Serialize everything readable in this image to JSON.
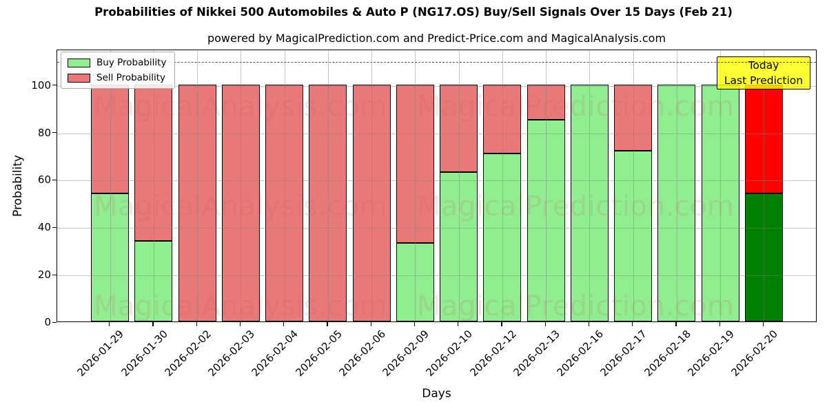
{
  "title": "Probabilities of Nikkei 500 Automobiles & Auto P (NG17.OS) Buy/Sell Signals Over 15 Days (Feb 21)",
  "subtitle": "powered by MagicalPrediction.com and Predict-Price.com and MagicalAnalysis.com",
  "axes": {
    "x_label": "Days",
    "y_label": "Probability"
  },
  "legend": [
    {
      "label": "Buy Probability",
      "color": "#90ee90"
    },
    {
      "label": "Sell Probability",
      "color": "#e97878"
    }
  ],
  "annotation_box": {
    "lines": [
      "Today",
      "Last Prediction"
    ],
    "bg_color": "#ffff33"
  },
  "watermarks": {
    "texts": [
      "MagicalAnalysis.com",
      "MagicalPrediction.com"
    ],
    "color": "rgba(205,92,92,0.16)"
  },
  "chart_data": {
    "type": "bar",
    "stacked": true,
    "title": "Probabilities of Nikkei 500 Automobiles & Auto P (NG17.OS) Buy/Sell Signals Over 15 Days (Feb 21)",
    "xlabel": "Days",
    "ylabel": "Probability",
    "categories": [
      "2026-01-29",
      "2026-01-30",
      "2026-02-02",
      "2026-02-03",
      "2026-02-04",
      "2026-02-05",
      "2026-02-06",
      "2026-02-09",
      "2026-02-10",
      "2026-02-12",
      "2026-02-13",
      "2026-02-16",
      "2026-02-17",
      "2026-02-18",
      "2026-02-19",
      "2026-02-20"
    ],
    "series": [
      {
        "name": "Buy Probability",
        "values": [
          54,
          34,
          0,
          0,
          0,
          0,
          0,
          33,
          63,
          71,
          85,
          100,
          72,
          100,
          100,
          54
        ]
      },
      {
        "name": "Sell Probability",
        "values": [
          46,
          66,
          100,
          100,
          100,
          100,
          100,
          67,
          37,
          29,
          15,
          0,
          28,
          0,
          0,
          46
        ]
      }
    ],
    "ylim": [
      0,
      115
    ],
    "yticks": [
      0,
      20,
      40,
      60,
      80,
      100
    ],
    "dashed_line_y": 110,
    "grid": true,
    "legend_position": "upper left",
    "colors": {
      "buy": "#90ee90",
      "sell": "#e97878",
      "last_buy": "#008000",
      "last_sell": "#ff0000",
      "edge": "#000000"
    },
    "last_bar_highlighted": true
  }
}
